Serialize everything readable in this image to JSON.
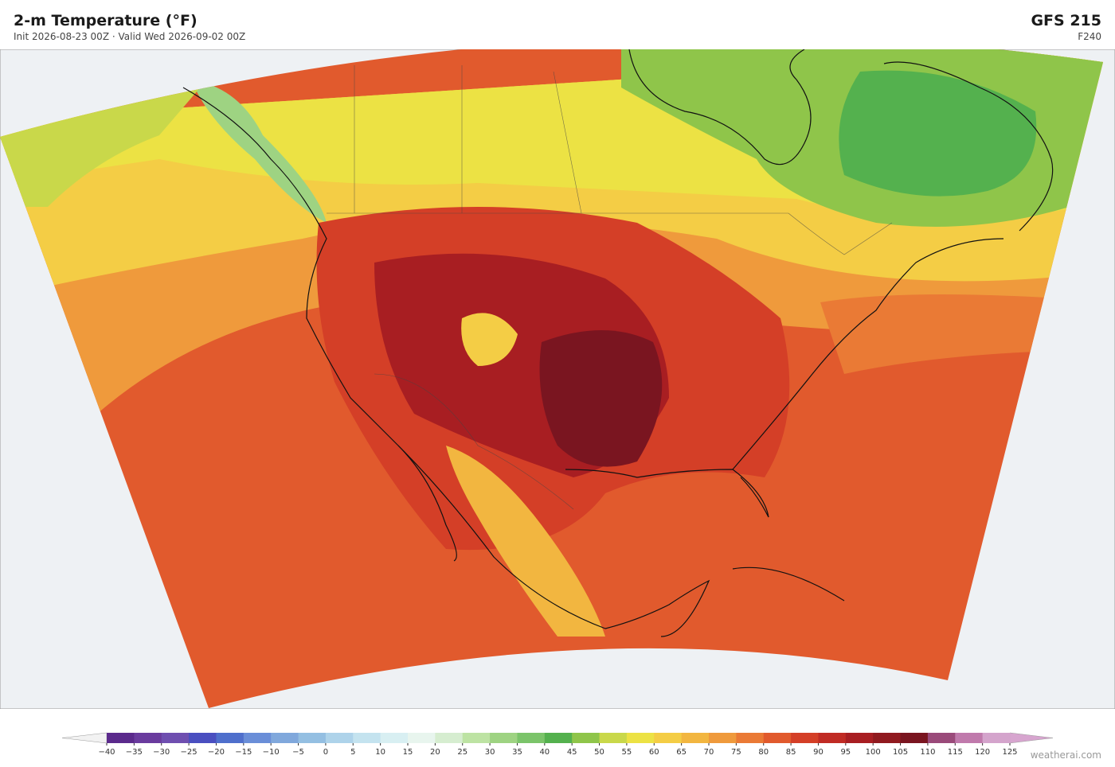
{
  "header": {
    "title": "2-m Temperature  (°F)",
    "subtitle": "Init 2026-08-23 00Z   ·   Valid Wed 2026-09-02 00Z",
    "model": "GFS  215",
    "forecast_hour": "F240"
  },
  "colorbar": {
    "ticks": [
      "−40",
      "−35",
      "−30",
      "−25",
      "−20",
      "−15",
      "−10",
      "−5",
      "0",
      "5",
      "10",
      "15",
      "20",
      "25",
      "30",
      "35",
      "40",
      "45",
      "50",
      "55",
      "60",
      "65",
      "70",
      "75",
      "80",
      "85",
      "90",
      "95",
      "100",
      "105",
      "110",
      "115",
      "120",
      "125"
    ],
    "colors": [
      "#5b2a8c",
      "#6a3b9e",
      "#6f4fb0",
      "#4a4fc0",
      "#4f6fcc",
      "#6a8ed8",
      "#80a8dc",
      "#94bfe2",
      "#aed3ea",
      "#c4e3ef",
      "#d8eff2",
      "#e8f5ee",
      "#d6edd0",
      "#bde3a3",
      "#9ed382",
      "#7bc46a",
      "#54b14e",
      "#8fc54a",
      "#c9d84a",
      "#ece244",
      "#f4cd45",
      "#f2b640",
      "#ef9a3c",
      "#ea7a35",
      "#e15a2d",
      "#d43f27",
      "#c02b24",
      "#a81e22",
      "#901a1f",
      "#7a1520",
      "#9a4a7a",
      "#c07aac",
      "#d4a4cc"
    ],
    "under_color": "#f2f2f2",
    "over_color": "#d7a5cf"
  },
  "footer": {
    "credit": "weatherai.com"
  }
}
